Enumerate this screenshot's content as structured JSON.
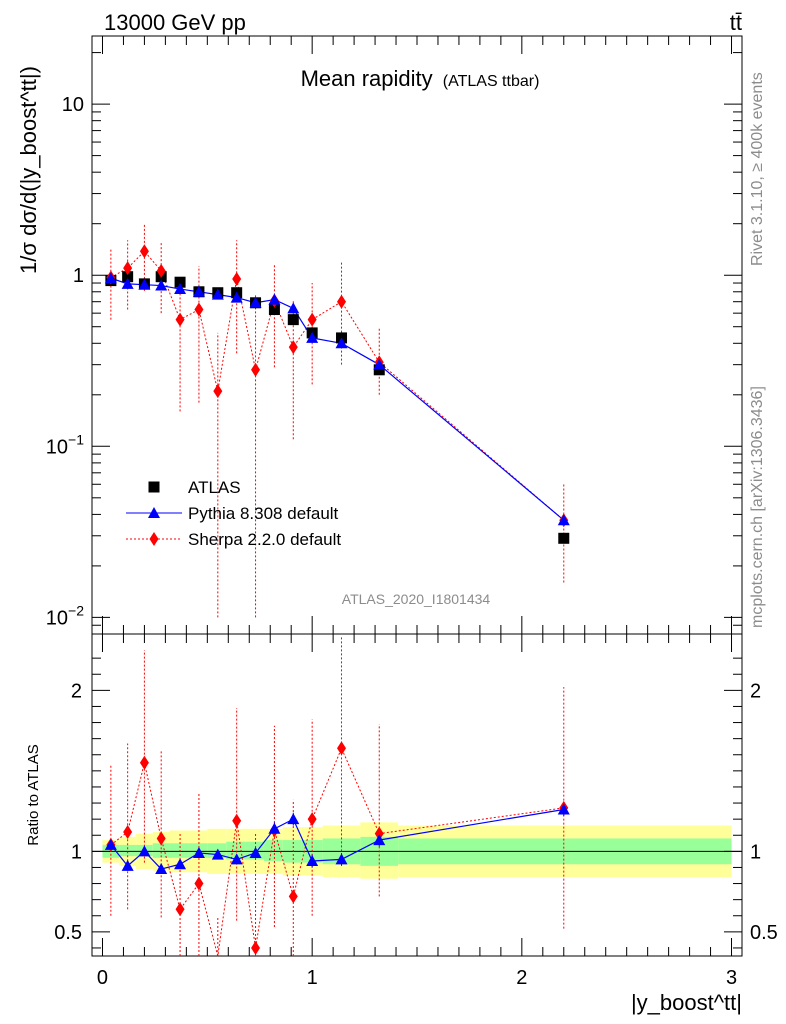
{
  "header": {
    "energy_label": "13000 GeV pp",
    "process_label": "tt̄"
  },
  "side_labels": {
    "rivet": "Rivet 3.1.10, ≥ 400k events",
    "mcplots": "mcplots.cern.ch [arXiv:1306.3436]"
  },
  "chart_data": [
    {
      "type": "scatter",
      "panel": "main",
      "title": "Mean rapidity",
      "subtitle": "(ATLAS ttbar)",
      "watermark": "ATLAS_2020_I1801434",
      "ylabel": "1/σ dσ/d(|y_boost^tt|)",
      "yscale": "log",
      "ylim": [
        0.008,
        25
      ],
      "xlim": [
        -0.05,
        3.05
      ],
      "y_tick_labels": [
        "10^-2",
        "10^-1",
        "1",
        "10"
      ],
      "legend_placement": "lower-left",
      "series": [
        {
          "name": "ATLAS",
          "marker": "square",
          "color": "#000000",
          "x": [
            0.04,
            0.12,
            0.2,
            0.28,
            0.37,
            0.46,
            0.55,
            0.64,
            0.73,
            0.82,
            0.91,
            1.0,
            1.14,
            1.32,
            2.2
          ],
          "y": [
            0.93,
            0.98,
            0.89,
            0.98,
            0.91,
            0.8,
            0.79,
            0.79,
            0.69,
            0.63,
            0.55,
            0.46,
            0.43,
            0.28,
            0.029
          ]
        },
        {
          "name": "Pythia 8.308 default",
          "marker": "triangle",
          "color": "#0000ff",
          "x": [
            0.04,
            0.12,
            0.2,
            0.28,
            0.37,
            0.46,
            0.55,
            0.64,
            0.73,
            0.82,
            0.91,
            1.0,
            1.14,
            1.32,
            2.2
          ],
          "y": [
            0.96,
            0.89,
            0.88,
            0.87,
            0.83,
            0.8,
            0.77,
            0.74,
            0.69,
            0.72,
            0.64,
            0.43,
            0.4,
            0.3,
            0.037
          ]
        },
        {
          "name": "Sherpa 2.2.0 default",
          "marker": "diamond",
          "color": "#ff0000",
          "x": [
            0.04,
            0.12,
            0.2,
            0.28,
            0.37,
            0.46,
            0.55,
            0.64,
            0.73,
            0.82,
            0.91,
            1.0,
            1.14,
            1.32,
            2.2
          ],
          "y": [
            0.97,
            1.1,
            1.38,
            1.06,
            0.55,
            0.63,
            0.21,
            0.95,
            0.28,
            0.71,
            0.38,
            0.55,
            0.7,
            0.31,
            0.037
          ],
          "err_lo": [
            0.42,
            0.47,
            0.57,
            0.46,
            0.39,
            0.45,
            0.2,
            0.6,
            0.27,
            0.42,
            0.27,
            0.32,
            0.4,
            0.11,
            0.021
          ],
          "err_hi": [
            0.45,
            0.5,
            0.6,
            0.5,
            0.42,
            0.5,
            0.25,
            0.65,
            0.5,
            0.45,
            0.33,
            0.35,
            0.5,
            0.19,
            0.023
          ]
        }
      ]
    },
    {
      "type": "scatter",
      "panel": "ratio",
      "ylabel": "Ratio to ATLAS",
      "xlabel": "|y_boost^tt|",
      "ylim": [
        0.35,
        2.35
      ],
      "xlim": [
        -0.05,
        3.05
      ],
      "x_tick_labels": [
        "0",
        "1",
        "2",
        "3"
      ],
      "y_tick_labels": [
        "0.5",
        "1",
        "2"
      ],
      "bands": {
        "edges": [
          0.0,
          0.08,
          0.16,
          0.24,
          0.32,
          0.41,
          0.5,
          0.59,
          0.68,
          0.77,
          0.86,
          0.95,
          1.05,
          1.23,
          1.41,
          3.0
        ],
        "stat_lo": [
          0.96,
          0.97,
          0.97,
          0.96,
          0.96,
          0.96,
          0.96,
          0.95,
          0.95,
          0.94,
          0.93,
          0.93,
          0.92,
          0.91,
          0.92
        ],
        "stat_hi": [
          1.04,
          1.04,
          1.04,
          1.05,
          1.05,
          1.05,
          1.05,
          1.06,
          1.06,
          1.07,
          1.07,
          1.07,
          1.08,
          1.09,
          1.08
        ],
        "total_lo": [
          0.93,
          0.91,
          0.89,
          0.88,
          0.87,
          0.87,
          0.86,
          0.86,
          0.86,
          0.86,
          0.85,
          0.85,
          0.84,
          0.83,
          0.84
        ],
        "total_hi": [
          1.07,
          1.09,
          1.11,
          1.12,
          1.13,
          1.13,
          1.14,
          1.14,
          1.14,
          1.14,
          1.15,
          1.15,
          1.16,
          1.18,
          1.16
        ],
        "stat_color": "#99ff99",
        "total_color": "#ffff99"
      },
      "series": [
        {
          "name": "Pythia 8.308 default",
          "color": "#0000ff",
          "x": [
            0.04,
            0.12,
            0.2,
            0.28,
            0.37,
            0.46,
            0.55,
            0.64,
            0.73,
            0.82,
            0.91,
            1.0,
            1.14,
            1.32,
            2.2
          ],
          "y": [
            1.04,
            0.91,
            1.0,
            0.89,
            0.92,
            0.99,
            0.98,
            0.95,
            0.99,
            1.14,
            1.2,
            0.94,
            0.95,
            1.07,
            1.26
          ],
          "err": [
            0.03,
            0.03,
            0.03,
            0.03,
            0.03,
            0.03,
            0.03,
            0.03,
            0.03,
            0.04,
            0.04,
            0.04,
            0.04,
            0.04,
            0.04
          ]
        },
        {
          "name": "Sherpa 2.2.0 default",
          "color": "#ff0000",
          "x": [
            0.04,
            0.12,
            0.2,
            0.28,
            0.37,
            0.46,
            0.55,
            0.64,
            0.73,
            0.82,
            0.91,
            1.0,
            1.14,
            1.32,
            2.2
          ],
          "y": [
            1.04,
            1.12,
            1.55,
            1.08,
            0.64,
            0.8,
            0.27,
            1.19,
            0.4,
            1.13,
            0.72,
            1.2,
            1.64,
            1.11,
            1.27
          ],
          "err_lo": [
            0.44,
            0.48,
            0.62,
            0.49,
            0.42,
            0.5,
            0.25,
            0.62,
            0.38,
            0.6,
            0.45,
            0.6,
            0.64,
            0.39,
            0.75
          ],
          "err_hi": [
            0.5,
            0.55,
            0.7,
            0.55,
            0.48,
            0.56,
            0.32,
            0.7,
            0.72,
            0.65,
            0.6,
            0.62,
            0.7,
            0.68,
            0.75
          ]
        }
      ]
    }
  ]
}
